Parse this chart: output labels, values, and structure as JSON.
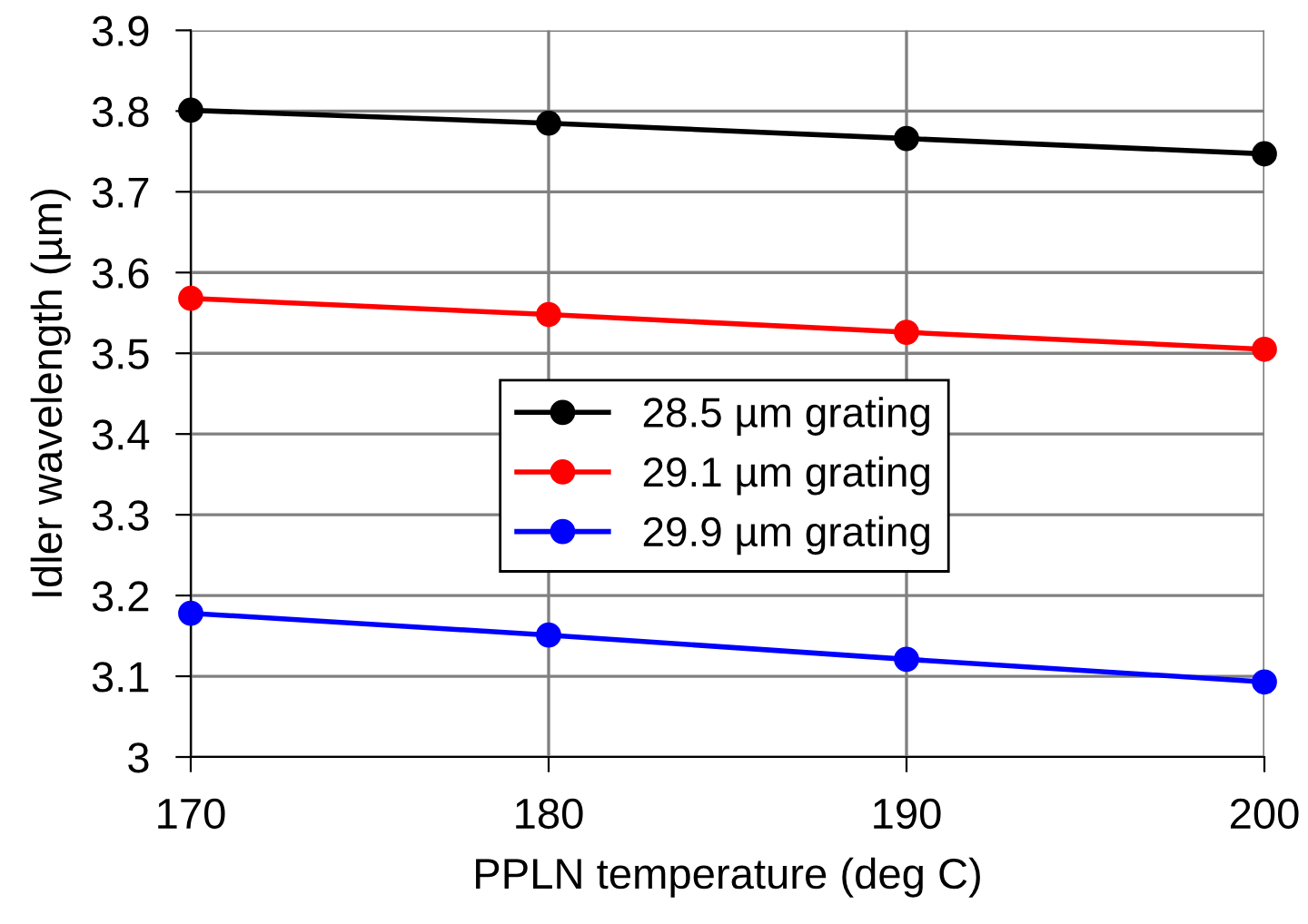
{
  "chart_data": {
    "type": "line",
    "xlabel": "PPLN temperature (deg C)",
    "ylabel": "Idler wavelength (µm)",
    "x": [
      170,
      180,
      190,
      200
    ],
    "series": [
      {
        "name": "28.5 µm grating",
        "color": "#000000",
        "values": [
          3.801,
          3.785,
          3.766,
          3.747
        ]
      },
      {
        "name": "29.1 µm grating",
        "color": "#ff0000",
        "values": [
          3.568,
          3.548,
          3.526,
          3.505
        ]
      },
      {
        "name": "29.9 µm grating",
        "color": "#0000ff",
        "values": [
          3.178,
          3.151,
          3.121,
          3.093
        ]
      }
    ],
    "xlim": [
      170,
      200
    ],
    "xticks": [
      170,
      180,
      190,
      200
    ],
    "ylim": [
      3,
      3.9
    ],
    "yticks": [
      {
        "value": 3,
        "label": "3"
      },
      3.1,
      3.2,
      3.3,
      3.4,
      3.5,
      3.6,
      3.7,
      3.8,
      3.9
    ],
    "grid": true,
    "legend": "center",
    "marker": "circle",
    "line_style": "solid"
  }
}
